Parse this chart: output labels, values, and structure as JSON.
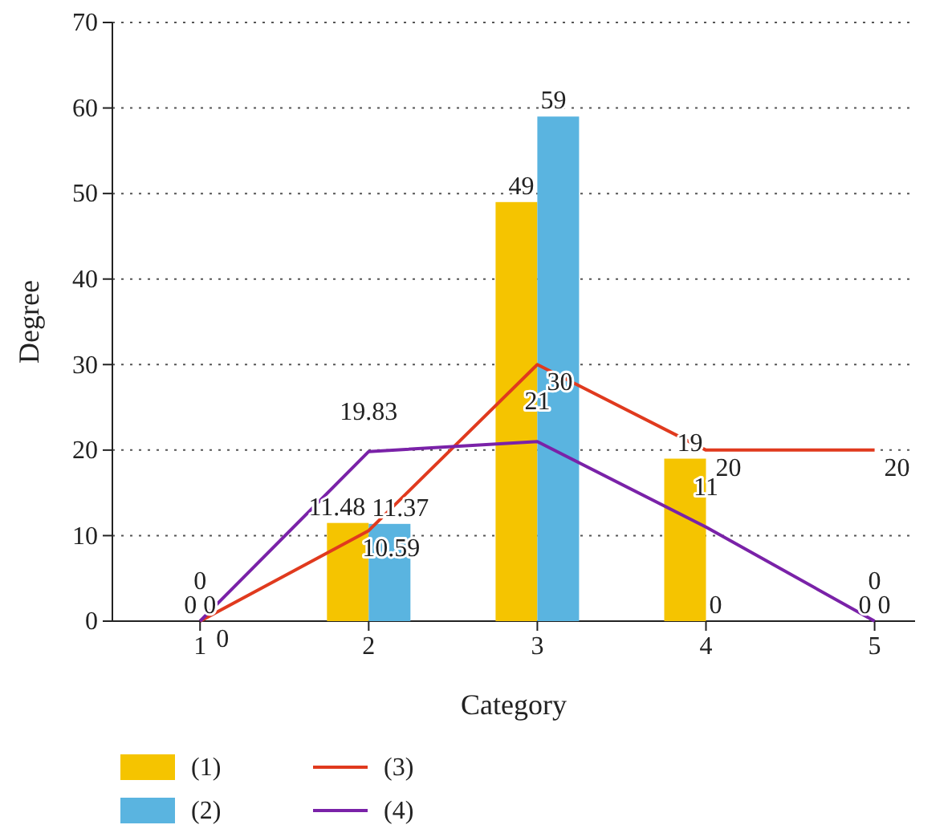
{
  "chart_data": {
    "type": "bar",
    "xlabel": "Category",
    "ylabel": "Degree",
    "categories": [
      "1",
      "2",
      "3",
      "4",
      "5"
    ],
    "series": [
      {
        "name": "(1)",
        "color": "#f5c400",
        "values": [
          0,
          11.48,
          49,
          19,
          0
        ]
      },
      {
        "name": "(2)",
        "color": "#5ab4e0",
        "values": [
          0,
          11.37,
          59,
          0,
          0
        ]
      },
      {
        "name": "(3)",
        "type": "line",
        "color": "#e03a1e",
        "values": [
          0,
          10.59,
          30,
          20,
          20
        ]
      },
      {
        "name": "(4)",
        "type": "line",
        "color": "#7a22a8",
        "values": [
          0,
          19.83,
          21,
          11,
          0
        ]
      }
    ],
    "ylim": [
      0,
      70
    ],
    "yticks": [
      0,
      10,
      20,
      30,
      40,
      50,
      60,
      70
    ],
    "grid": "y",
    "legend": "bottom left",
    "data_labels": true,
    "marker": "none",
    "line_style": "solid"
  }
}
